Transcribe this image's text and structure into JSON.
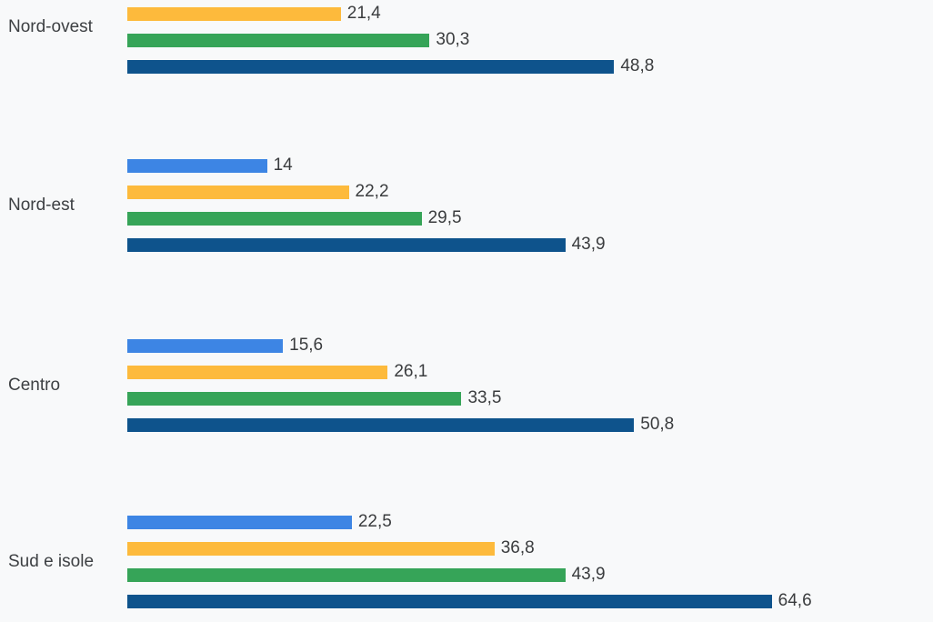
{
  "chart_data": {
    "type": "bar",
    "orientation": "horizontal",
    "title": "",
    "xlabel": "",
    "ylabel": "",
    "legend": "none",
    "gridlines": false,
    "value_format": "italian decimal comma",
    "background_color": "#f8f9fa",
    "label_color": "#3d4043",
    "value_label_color": "#3a3c3e",
    "axis": {
      "x_min": 0,
      "x_max_visible": 80.8
    },
    "categories": [
      "Nord-ovest",
      "Nord-est",
      "Centro",
      "Sud e isole"
    ],
    "series": [
      {
        "name": "series-blue",
        "color": "#3d85e4",
        "values": [
          null,
          14,
          15.6,
          22.5
        ],
        "labels": [
          "",
          "14",
          "15,6",
          "22,5"
        ],
        "note": "first value not visible; bar cropped above top edge of image"
      },
      {
        "name": "series-yellow",
        "color": "#fdba3c",
        "values": [
          21.4,
          22.2,
          26.1,
          36.8
        ],
        "labels": [
          "21,4",
          "22,2",
          "26,1",
          "36,8"
        ]
      },
      {
        "name": "series-green",
        "color": "#36a458",
        "values": [
          30.3,
          29.5,
          33.5,
          43.9
        ],
        "labels": [
          "30,3",
          "29,5",
          "33,5",
          "43,9"
        ]
      },
      {
        "name": "series-navy",
        "color": "#0e538c",
        "values": [
          48.8,
          43.9,
          50.8,
          64.6
        ],
        "labels": [
          "48,8",
          "43,9",
          "50,8",
          "64,6"
        ]
      }
    ]
  }
}
